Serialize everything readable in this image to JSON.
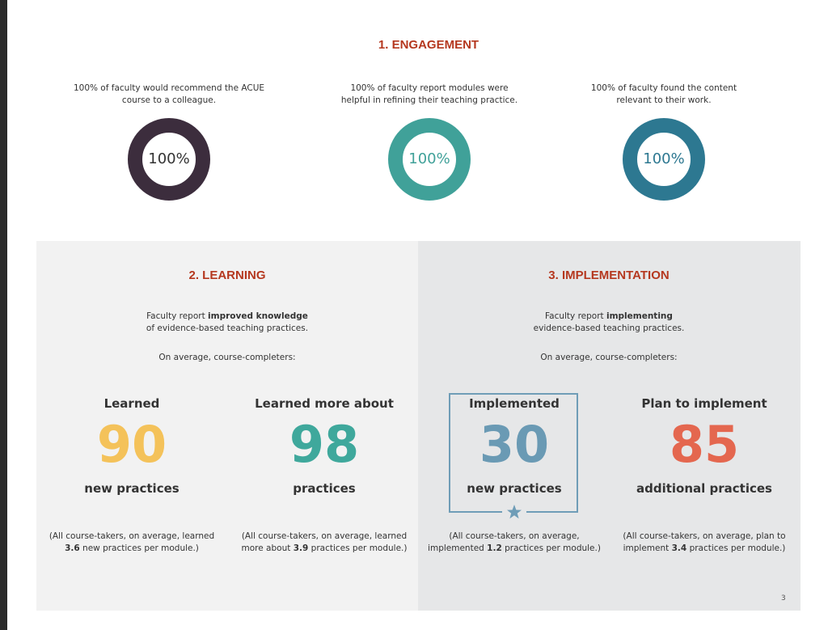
{
  "engagement": {
    "title": "1. ENGAGEMENT",
    "items": [
      {
        "text": [
          "100% of faculty would recommend the ACUE",
          "course to a colleague."
        ],
        "ring": "100%"
      },
      {
        "text": [
          "100% of faculty report modules were",
          "helpful in refining their teaching practice."
        ],
        "ring": "100%"
      },
      {
        "text": [
          "100% of faculty found the content",
          "relevant to their work."
        ],
        "ring": "100%"
      }
    ]
  },
  "learning": {
    "title": "2. LEARNING",
    "intro": {
      "before": "Faculty report",
      "bold": "improved knowledge",
      "line2": "of evidence-based teaching practices."
    },
    "average": "On average, course-completers:",
    "stats": [
      {
        "heading": "Learned",
        "number": "90",
        "unit": "new practices",
        "note": {
          "line1": "(All course-takers, on average, learned",
          "bold": "3.6",
          "after": "new practices per module.)"
        }
      },
      {
        "heading": "Learned more about",
        "number": "98",
        "unit": "practices",
        "note": {
          "line1": "(All course-takers, on average, learned",
          "before": "more about",
          "bold": "3.9",
          "after": "practices per module.)"
        }
      }
    ]
  },
  "implementation": {
    "title": "3. IMPLEMENTATION",
    "intro": {
      "before": "Faculty report",
      "bold": "implementing",
      "line2": "evidence-based teaching practices."
    },
    "average": "On average, course-completers:",
    "stats": [
      {
        "heading": "Implemented",
        "number": "30",
        "unit": "new practices",
        "note": {
          "line1": "(All course-takers, on average,",
          "before": "implemented",
          "bold": "1.2",
          "after": "practices per module.)"
        }
      },
      {
        "heading": "Plan to implement",
        "number": "85",
        "unit": "additional practices",
        "note": {
          "line1": "(All course-takers, on average, plan to",
          "before": "implement",
          "bold": "3.4",
          "after": "practices per module.)"
        }
      }
    ]
  },
  "page_number": "3"
}
